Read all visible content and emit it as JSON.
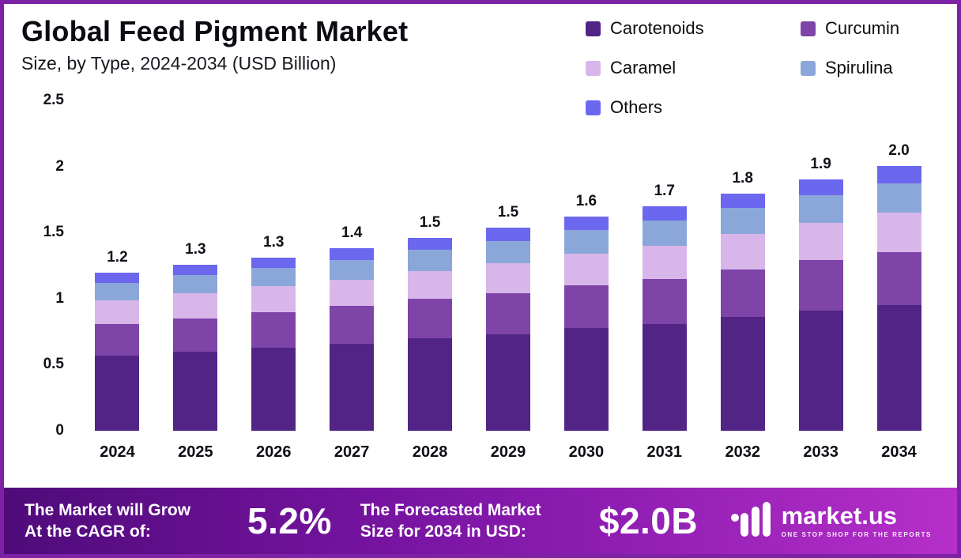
{
  "title": "Global Feed Pigment Market",
  "subtitle": "Size, by Type, 2024-2034 (USD Billion)",
  "chart_data": {
    "type": "bar",
    "stacked": true,
    "title": "Global Feed Pigment Market Size, by Type, 2024-2034 (USD Billion)",
    "categories": [
      "2024",
      "2025",
      "2026",
      "2027",
      "2028",
      "2029",
      "2030",
      "2031",
      "2032",
      "2033",
      "2034"
    ],
    "series": [
      {
        "name": "Carotenoids",
        "color": "#512485",
        "values": [
          0.57,
          0.6,
          0.63,
          0.66,
          0.7,
          0.73,
          0.78,
          0.81,
          0.86,
          0.91,
          0.95
        ]
      },
      {
        "name": "Curcumin",
        "color": "#7e44a8",
        "values": [
          0.24,
          0.25,
          0.27,
          0.29,
          0.3,
          0.31,
          0.32,
          0.34,
          0.36,
          0.38,
          0.4
        ]
      },
      {
        "name": "Caramel",
        "color": "#d9b6ea",
        "values": [
          0.18,
          0.19,
          0.2,
          0.2,
          0.21,
          0.23,
          0.24,
          0.25,
          0.27,
          0.28,
          0.3
        ]
      },
      {
        "name": "Spirulina",
        "color": "#8ba7d9",
        "values": [
          0.13,
          0.14,
          0.14,
          0.15,
          0.16,
          0.17,
          0.18,
          0.19,
          0.2,
          0.21,
          0.22
        ]
      },
      {
        "name": "Others",
        "color": "#6c67ef",
        "values": [
          0.08,
          0.08,
          0.08,
          0.09,
          0.09,
          0.1,
          0.1,
          0.11,
          0.11,
          0.12,
          0.13
        ]
      }
    ],
    "totals": [
      "1.2",
      "1.3",
      "1.3",
      "1.4",
      "1.5",
      "1.5",
      "1.6",
      "1.7",
      "1.8",
      "1.9",
      "2.0"
    ],
    "ylim": [
      0,
      2.5
    ],
    "yticks": [
      "0",
      "0.5",
      "1",
      "1.5",
      "2",
      "2.5"
    ],
    "grid": false,
    "legend_position": "top-right"
  },
  "footer": {
    "cagr_label_line1": "The Market will Grow",
    "cagr_label_line2": "At the CAGR of:",
    "cagr_value": "5.2%",
    "forecast_label_line1": "The Forecasted Market",
    "forecast_label_line2": "Size for 2034 in USD:",
    "forecast_value": "$2.0B",
    "brand_name": "market.us",
    "brand_tagline": "ONE STOP SHOP FOR THE REPORTS"
  }
}
